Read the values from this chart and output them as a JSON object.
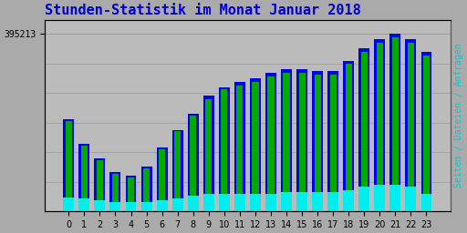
{
  "title": "Stunden-Statistik im Monat Januar 2018",
  "title_color": "#0000cc",
  "title_fontsize": 11,
  "background_color": "#aaaaaa",
  "plot_bg_color": "#bbbbbb",
  "ylabel_right": "Seiten / Dateien / Anfragen",
  "ylabel_right_color": "#00cccc",
  "ytick_label": "395213",
  "ytick_color": "#000000",
  "xlabel_color": "#000000",
  "categories": [
    0,
    1,
    2,
    3,
    4,
    5,
    6,
    7,
    8,
    9,
    10,
    11,
    12,
    13,
    14,
    15,
    16,
    17,
    18,
    19,
    20,
    21,
    22,
    23
  ],
  "seiten": [
    0.52,
    0.38,
    0.3,
    0.22,
    0.2,
    0.25,
    0.36,
    0.46,
    0.55,
    0.65,
    0.7,
    0.73,
    0.75,
    0.78,
    0.8,
    0.8,
    0.79,
    0.79,
    0.85,
    0.92,
    0.97,
    1.0,
    0.97,
    0.9
  ],
  "dateien": [
    0.51,
    0.37,
    0.29,
    0.21,
    0.19,
    0.24,
    0.35,
    0.45,
    0.54,
    0.63,
    0.69,
    0.71,
    0.73,
    0.76,
    0.78,
    0.78,
    0.77,
    0.77,
    0.83,
    0.9,
    0.95,
    0.98,
    0.95,
    0.88
  ],
  "anfragen": [
    0.08,
    0.07,
    0.06,
    0.05,
    0.05,
    0.05,
    0.06,
    0.07,
    0.09,
    0.1,
    0.1,
    0.1,
    0.1,
    0.1,
    0.11,
    0.11,
    0.11,
    0.11,
    0.12,
    0.14,
    0.15,
    0.15,
    0.14,
    0.1
  ],
  "color_seiten": "#0000ee",
  "color_dateien": "#00aa00",
  "color_anfragen": "#00eeee",
  "bar_width": 0.7,
  "max_value": 395213
}
